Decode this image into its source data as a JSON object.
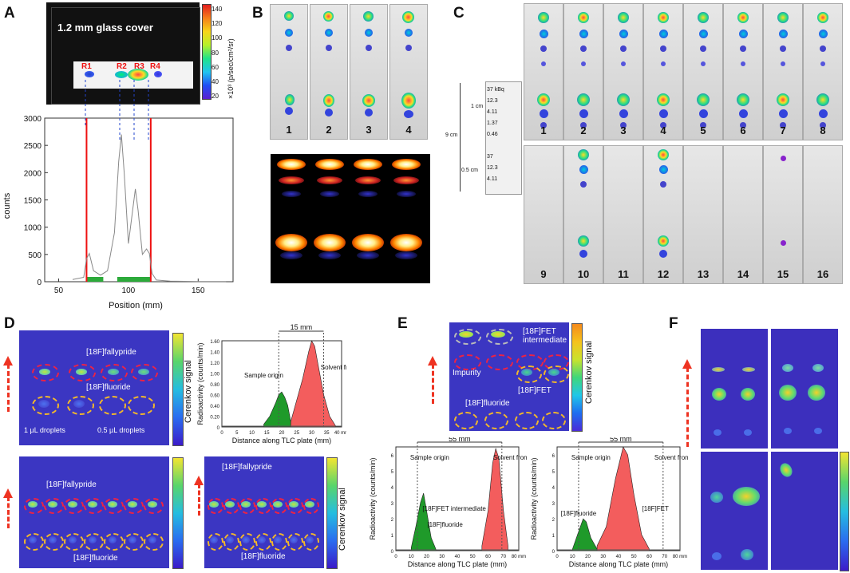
{
  "panels": {
    "A": "A",
    "B": "B",
    "C": "C",
    "D": "D",
    "E": "E",
    "F": "F"
  },
  "panelA": {
    "cover_label": "1.2 mm glass cover",
    "regions": [
      "R1",
      "R2",
      "R3",
      "R4"
    ],
    "colorbar_ticks": [
      "140",
      "120",
      "100",
      "80",
      "60",
      "40",
      "20"
    ],
    "colorbar_unit": "×10³ (p/sec/cm²/sr)",
    "ylabel": "counts",
    "xlabel": "Position (mm)"
  },
  "chart_data": [
    {
      "type": "line",
      "title": "",
      "xlabel": "Position (mm)",
      "ylabel": "counts",
      "xlim": [
        40,
        175
      ],
      "ylim": [
        0,
        3000
      ],
      "xticks": [
        "50",
        "100",
        "150"
      ],
      "yticks": [
        "0",
        "500",
        "1000",
        "1500",
        "2000",
        "2500",
        "3000"
      ],
      "x": [
        60,
        68,
        70,
        72,
        75,
        80,
        85,
        90,
        93,
        95,
        97,
        100,
        103,
        105,
        107,
        110,
        113,
        115,
        117,
        120,
        130,
        140,
        150,
        160,
        170
      ],
      "y": [
        40,
        80,
        420,
        520,
        200,
        120,
        200,
        900,
        2200,
        2700,
        2000,
        700,
        1300,
        1700,
        1300,
        500,
        600,
        520,
        150,
        30,
        10,
        8,
        5,
        5,
        5
      ],
      "red_lines_at": [
        70,
        116
      ]
    },
    {
      "type": "area",
      "title": "",
      "xlabel": "Distance along TLC plate (mm)",
      "ylabel": "Radioactivity (counts/min)",
      "xlim": [
        0,
        40
      ],
      "ylim": [
        0,
        1.6
      ],
      "xticks": [
        "0",
        "5",
        "10",
        "15",
        "20",
        "25",
        "30",
        "35",
        "40 mm"
      ],
      "yticks": [
        "0",
        "0.20",
        "0.40",
        "0.60",
        "0.80",
        "1.00",
        "1.20",
        "1.40",
        "1.60"
      ],
      "series": [
        {
          "name": "green",
          "color": "#1f9a2a",
          "x": [
            14,
            16,
            18,
            19,
            20,
            21,
            22,
            23
          ],
          "y": [
            0.05,
            0.2,
            0.45,
            0.6,
            0.65,
            0.55,
            0.4,
            0.1
          ]
        },
        {
          "name": "red",
          "color": "#f35d5d",
          "x": [
            23,
            25,
            27,
            29,
            30,
            31,
            32,
            34,
            36,
            38
          ],
          "y": [
            0.1,
            0.5,
            0.9,
            1.4,
            1.6,
            1.5,
            1.2,
            0.6,
            0.2,
            0.02
          ]
        }
      ],
      "annotations": [
        "15 mm",
        "Sample origin",
        "Solvent front"
      ]
    },
    {
      "type": "area",
      "title": "",
      "xlabel": "Distance along TLC plate (mm)",
      "ylabel": "Radioactivity (counts/min)",
      "xlim": [
        0,
        80
      ],
      "ylim": [
        0,
        6.5
      ],
      "xticks": [
        "0",
        "10",
        "20",
        "30",
        "40",
        "50",
        "60",
        "70",
        "80 mm"
      ],
      "yticks": [
        "0",
        "1",
        "2",
        "3",
        "4",
        "5",
        "6"
      ],
      "series": [
        {
          "name": "green",
          "color": "#1f9a2a",
          "x": [
            10,
            13,
            16,
            18,
            20,
            23,
            26
          ],
          "y": [
            0.2,
            1.5,
            3.0,
            3.6,
            2.5,
            0.8,
            0.1
          ]
        },
        {
          "name": "red",
          "color": "#f35d5d",
          "x": [
            56,
            60,
            63,
            65,
            67,
            70,
            73
          ],
          "y": [
            0.3,
            2.5,
            5.5,
            6.4,
            5.8,
            2.5,
            0.3
          ]
        }
      ],
      "annotations": [
        "55 mm",
        "Sample origin",
        "Solvent front",
        "[18F]FET intermediate",
        "[18F]fluoride"
      ]
    },
    {
      "type": "area",
      "title": "",
      "xlabel": "Distance along TLC plate (mm)",
      "ylabel": "Radioactivity (counts/min)",
      "xlim": [
        0,
        80
      ],
      "ylim": [
        0,
        6.5
      ],
      "xticks": [
        "0",
        "10",
        "20",
        "30",
        "40",
        "50",
        "60",
        "70",
        "80 mm"
      ],
      "yticks": [
        "0",
        "1",
        "2",
        "3",
        "4",
        "5",
        "6"
      ],
      "series": [
        {
          "name": "green",
          "color": "#1f9a2a",
          "x": [
            10,
            14,
            17,
            19,
            22,
            26
          ],
          "y": [
            0.1,
            1.2,
            2.0,
            1.8,
            0.8,
            0.1
          ]
        },
        {
          "name": "red",
          "color": "#f35d5d",
          "x": [
            26,
            32,
            38,
            43,
            46,
            50,
            55,
            60
          ],
          "y": [
            0.3,
            1.5,
            4.5,
            6.5,
            6.0,
            3.5,
            1.0,
            0.1
          ]
        }
      ],
      "annotations": [
        "55 mm",
        "Sample origin",
        "Solvent front",
        "[18F]fluoride",
        "[18F]FET"
      ]
    }
  ],
  "panelB": {
    "strip_numbers": [
      "1",
      "2",
      "3",
      "4"
    ]
  },
  "panelC": {
    "strip_numbers_top": [
      "1",
      "2",
      "3",
      "4",
      "5",
      "6",
      "7",
      "8"
    ],
    "strip_numbers_bottom": [
      "9",
      "10",
      "11",
      "12",
      "13",
      "14",
      "15",
      "16"
    ],
    "legend_values": [
      "37 kBq",
      "12.3",
      "4.11",
      "1.37",
      "0.46",
      "37",
      "12.3",
      "4.11"
    ],
    "dims": [
      "1 cm",
      "9 cm",
      "0.5 cm"
    ]
  },
  "panelD": {
    "cbar_label": "Cerenkov signal",
    "fallypride": "[18F]fallypride",
    "fluoride": "[18F]fluoride",
    "droplet_1": "1 µL droplets",
    "droplet_05": "0.5 µL droplets"
  },
  "panelE": {
    "cbar_label": "Cerenkov signal",
    "intermediate": "[18F]FET intermediate",
    "impurity": "Impurity",
    "fet": "[18F]FET",
    "fluoride": "[18F]fluoride"
  }
}
